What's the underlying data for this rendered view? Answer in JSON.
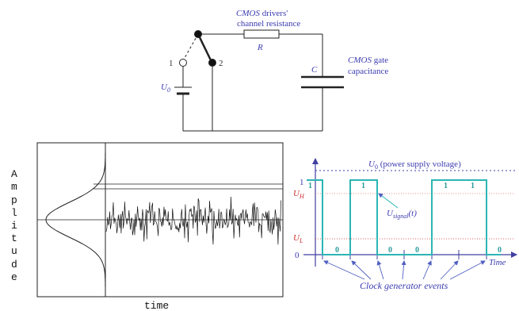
{
  "circuit": {
    "label_cmos_italic": "CMOS",
    "label_drivers_rest": " drivers'",
    "label_channel_resistance": "channel resistance",
    "label_R": "R",
    "label_node1": "1",
    "label_node2": "2",
    "label_U0": "U",
    "label_U0_sub": "0",
    "label_C": "C",
    "label_cmos_gate_italic": "CMOS",
    "label_gate_rest": " gate",
    "label_capacitance": "capacitance"
  },
  "noise_plot": {
    "ylabel": "Amplitude",
    "ylabel_letters": [
      "A",
      "m",
      "p",
      "l",
      "i",
      "t",
      "u",
      "d",
      "e"
    ],
    "xlabel": "time"
  },
  "timing": {
    "supply_U": "U",
    "supply_sub": "0",
    "supply_rest": " (power supply voltage)",
    "level_H": "U",
    "level_H_sub": "H",
    "level_L": "U",
    "level_L_sub": "L",
    "signal_U": "U",
    "signal_sub": "signal",
    "signal_t": "(t)",
    "tick_1": "1",
    "tick_0": "0",
    "axis_time": "Time",
    "clock_label": "Clock generator events",
    "bit_labels": [
      "1",
      "0",
      "1",
      "0",
      "0",
      "1",
      "1",
      "0"
    ]
  },
  "colors": {
    "signal": "#2cb5b5",
    "supply_line": "#3b3bb0",
    "thresholds": "#cc2b2b",
    "text_blue": "#3b3bb0",
    "axis": "#4040a0"
  }
}
